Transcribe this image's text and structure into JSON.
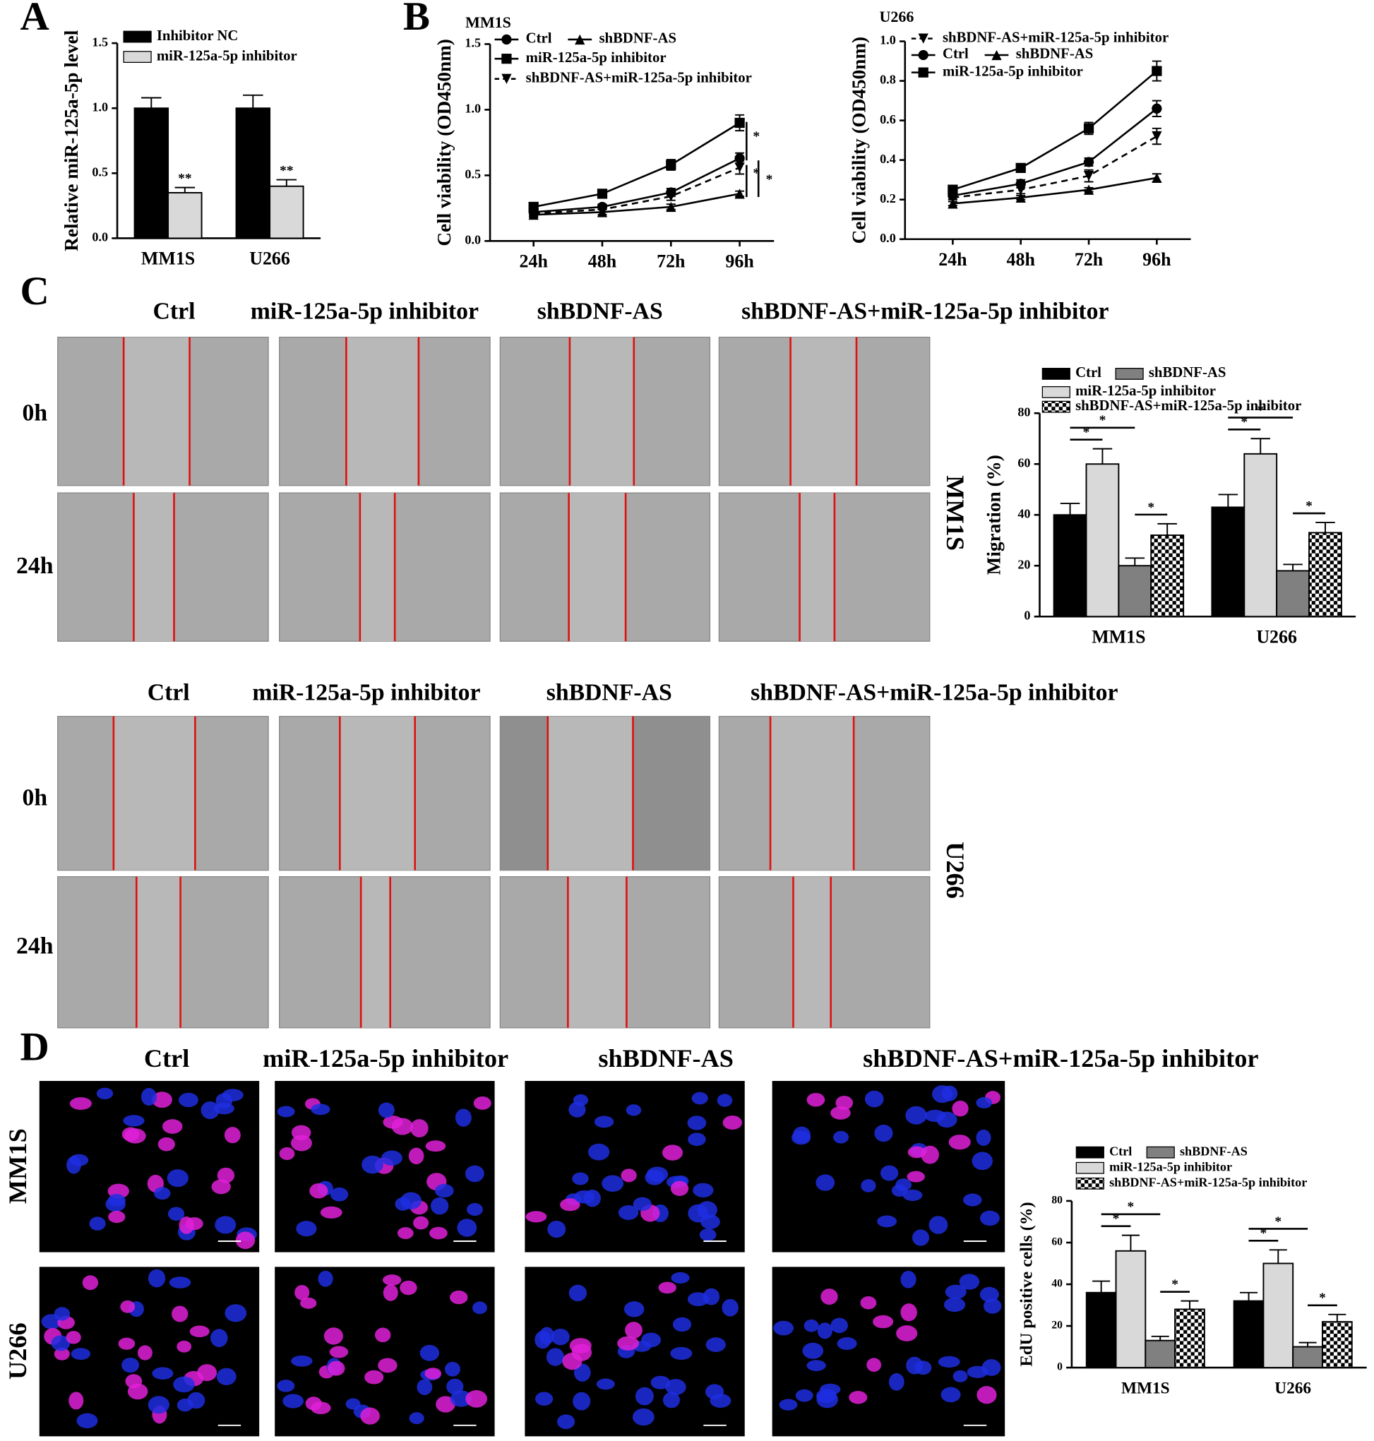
{
  "figure": {
    "panel_letters": [
      "A",
      "B",
      "C",
      "D"
    ],
    "wound_healing": [
      {
        "cell_line": "MM1S",
        "columns": [
          "Ctrl",
          "miR-125a-5p inhibitor",
          "shBDNF-AS",
          "shBDNF-AS+miR-125a-5p inhibitor"
        ],
        "rows": [
          "0h",
          "24h"
        ]
      },
      {
        "cell_line": "U266",
        "columns": [
          "Ctrl",
          "miR-125a-5p inhibitor",
          "shBDNF-AS",
          "shBDNF-AS+miR-125a-5p inhibitor"
        ],
        "rows": [
          "0h",
          "24h"
        ]
      }
    ],
    "edu": {
      "columns": [
        "Ctrl",
        "miR-125a-5p inhibitor",
        "shBDNF-AS",
        "shBDNF-AS+miR-125a-5p inhibitor"
      ],
      "rows": [
        "MM1S",
        "U266"
      ]
    }
  },
  "chart_data": [
    {
      "type": "bar",
      "ylabel": "Relative miR-125a-5p level",
      "categories": [
        "MM1S",
        "U266"
      ],
      "series": [
        {
          "name": "Inhibitor NC",
          "color": "#000000",
          "values": [
            1.0,
            1.0
          ],
          "errors": [
            0.08,
            0.1
          ]
        },
        {
          "name": "miR-125a-5p inhibitor",
          "color": "#d9d9d9",
          "values": [
            0.35,
            0.4
          ],
          "errors": [
            0.04,
            0.05
          ],
          "significance": [
            "**",
            "**"
          ]
        }
      ],
      "ylim": [
        0,
        1.5
      ],
      "yticks": [
        {
          "value": 0,
          "label": "0.0"
        },
        0.5,
        {
          "value": 1,
          "label": "1.0"
        },
        {
          "value": 1.5,
          "label": "1.5"
        }
      ]
    },
    {
      "type": "line",
      "title": "MM1S",
      "ylabel": "Cell viability (OD450nm)",
      "categories": [
        "24h",
        "48h",
        "72h",
        "96h"
      ],
      "series": [
        {
          "name": "Ctrl",
          "color": "#000000",
          "marker": "circle",
          "dashed": false,
          "values": [
            0.22,
            0.26,
            0.37,
            0.63
          ],
          "errors": [
            0.02,
            0.02,
            0.03,
            0.04
          ]
        },
        {
          "name": "shBDNF-AS",
          "color": "#000000",
          "marker": "triangle",
          "dashed": false,
          "values": [
            0.2,
            0.22,
            0.26,
            0.36
          ],
          "errors": [
            0.02,
            0.02,
            0.02,
            0.02
          ]
        },
        {
          "name": "miR-125a-5p inhibitor",
          "color": "#000000",
          "marker": "square",
          "dashed": false,
          "values": [
            0.26,
            0.36,
            0.58,
            0.9
          ],
          "errors": [
            0.02,
            0.02,
            0.04,
            0.06
          ]
        },
        {
          "name": "shBDNF-AS+miR-125a-5p inhibitor",
          "color": "#000000",
          "marker": "triangle-down",
          "dashed": true,
          "values": [
            0.21,
            0.24,
            0.34,
            0.56
          ],
          "errors": [
            0.02,
            0.02,
            0.03,
            0.05
          ]
        }
      ],
      "significance": [
        "*",
        "*",
        "*"
      ],
      "ylim": [
        0,
        1.5
      ],
      "yticks": [
        {
          "value": 0,
          "label": "0.0"
        },
        0.5,
        {
          "value": 1,
          "label": "1.0"
        },
        {
          "value": 1.5,
          "label": "1.5"
        }
      ]
    },
    {
      "type": "line",
      "title": "U266",
      "ylabel": "Cell viability (OD450nm)",
      "categories": [
        "24h",
        "48h",
        "72h",
        "96h"
      ],
      "series": [
        {
          "name": "shBDNF-AS+miR-125a-5p inhibitor",
          "color": "#000000",
          "marker": "triangle-down",
          "dashed": true,
          "values": [
            0.21,
            0.25,
            0.32,
            0.52
          ],
          "errors": [
            0.01,
            0.02,
            0.03,
            0.04
          ]
        },
        {
          "name": "Ctrl",
          "color": "#000000",
          "marker": "circle",
          "dashed": false,
          "values": [
            0.22,
            0.28,
            0.39,
            0.66
          ],
          "errors": [
            0.02,
            0.02,
            0.02,
            0.04
          ]
        },
        {
          "name": "shBDNF-AS",
          "color": "#000000",
          "marker": "triangle",
          "dashed": false,
          "values": [
            0.18,
            0.21,
            0.25,
            0.31
          ],
          "errors": [
            0.01,
            0.01,
            0.01,
            0.02
          ]
        },
        {
          "name": "miR-125a-5p inhibitor",
          "color": "#000000",
          "marker": "square",
          "dashed": false,
          "values": [
            0.25,
            0.36,
            0.56,
            0.85
          ],
          "errors": [
            0.02,
            0.02,
            0.03,
            0.05
          ]
        }
      ],
      "ylim": [
        0,
        1.0
      ],
      "yticks": [
        {
          "value": 0,
          "label": "0.0"
        },
        0.2,
        0.4,
        0.6,
        0.8,
        {
          "value": 1,
          "label": "1.0"
        }
      ]
    },
    {
      "type": "bar",
      "ylabel": "Migration (%)",
      "categories": [
        "MM1S",
        "U266"
      ],
      "series": [
        {
          "name": "Ctrl",
          "color": "#000000",
          "values": [
            40,
            43
          ],
          "errors": [
            4.5,
            5
          ]
        },
        {
          "name": "miR-125a-5p inhibitor",
          "color": "#d9d9d9",
          "values": [
            60,
            64
          ],
          "errors": [
            6,
            6
          ]
        },
        {
          "name": "shBDNF-AS",
          "color": "#808080",
          "values": [
            20,
            18
          ],
          "errors": [
            3,
            2.5
          ]
        },
        {
          "name": "shBDNF-AS+miR-125a-5p inhibitor",
          "color": "#ffffff",
          "pattern": "checkerboard",
          "values": [
            32,
            33
          ],
          "errors": [
            4.5,
            4
          ]
        }
      ],
      "significance": [
        [
          "*",
          "*",
          "*"
        ],
        [
          "*",
          "*",
          "*"
        ]
      ],
      "ylim": [
        0,
        80
      ],
      "yticks": [
        0,
        20,
        40,
        60,
        80
      ]
    },
    {
      "type": "bar",
      "ylabel": "EdU positive cells (%)",
      "categories": [
        "MM1S",
        "U266"
      ],
      "series": [
        {
          "name": "Ctrl",
          "color": "#000000",
          "values": [
            36,
            32
          ],
          "errors": [
            5.5,
            4
          ]
        },
        {
          "name": "miR-125a-5p inhibitor",
          "color": "#d9d9d9",
          "values": [
            56,
            50
          ],
          "errors": [
            7.5,
            6.5
          ]
        },
        {
          "name": "shBDNF-AS",
          "color": "#808080",
          "values": [
            13,
            10
          ],
          "errors": [
            2,
            2
          ]
        },
        {
          "name": "shBDNF-AS+miR-125a-5p inhibitor",
          "color": "#ffffff",
          "pattern": "checkerboard",
          "values": [
            28,
            22
          ],
          "errors": [
            4,
            3.5
          ]
        }
      ],
      "significance": [
        [
          "*",
          "*",
          "*"
        ],
        [
          "*",
          "*",
          "*"
        ]
      ],
      "ylim": [
        0,
        80
      ],
      "yticks": [
        0,
        20,
        40,
        60,
        80
      ]
    }
  ]
}
